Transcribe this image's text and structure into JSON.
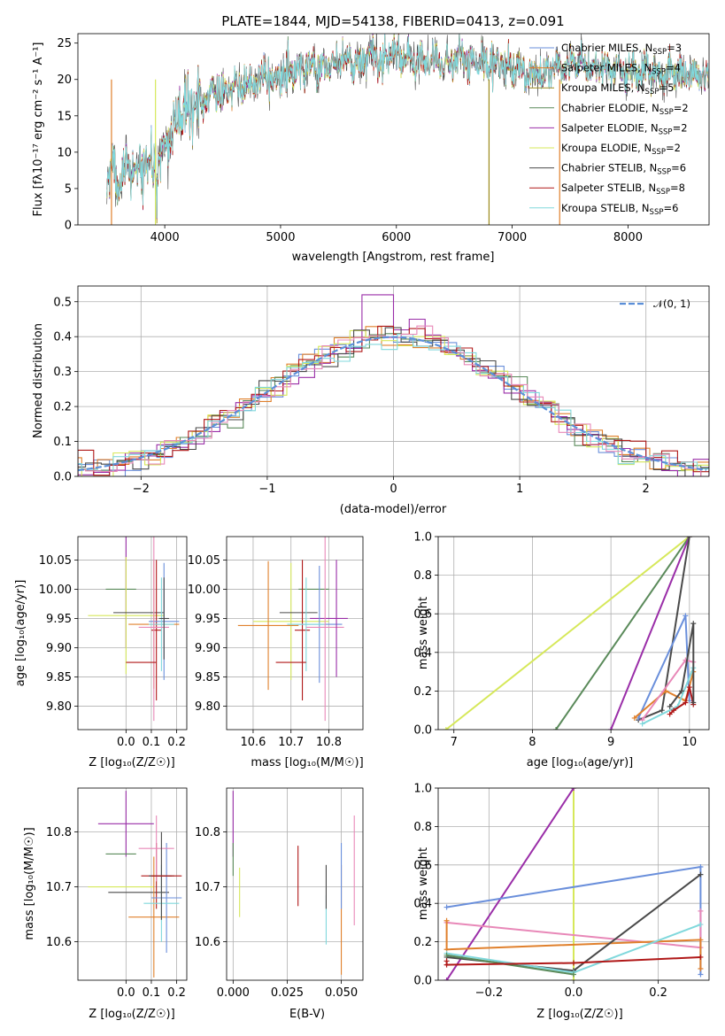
{
  "colors": {
    "chabrier_miles": "#6a8fdb",
    "salpeter_miles": "#e0802c",
    "kroupa_miles": "#9c8a1c",
    "chabrier_elodie": "#5a8a5a",
    "salpeter_elodie": "#9a2ea8",
    "kroupa_elodie": "#d6e85a",
    "chabrier_stelib": "#4a4a4a",
    "salpeter_stelib": "#b01818",
    "kroupa_stelib": "#80d8dc",
    "pink": "#e888b8"
  },
  "chart_data": [
    {
      "type": "line",
      "title": "PLATE=1844, MJD=54138, FIBERID=0413, z=0.091",
      "xlabel": "wavelength [Angstrom, rest frame]",
      "ylabel": "Flux [fλ10⁻¹⁷ erg cm⁻² s⁻¹ A⁻¹]",
      "xlim": [
        3250,
        8700
      ],
      "ylim": [
        0,
        26.3
      ],
      "xticks": [
        4000,
        5000,
        6000,
        7000,
        8000
      ],
      "yticks": [
        0,
        5,
        10,
        15,
        20,
        25
      ],
      "legend": [
        {
          "label": "Chabrier MILES, N",
          "sub": "SSP",
          "suffix": "=3",
          "color": "#6a8fdb"
        },
        {
          "label": "Salpeter MILES, N",
          "sub": "SSP",
          "suffix": "=4",
          "color": "#e0802c"
        },
        {
          "label": "Kroupa MILES, N",
          "sub": "SSP",
          "suffix": "=5",
          "color": "#9c8a1c"
        },
        {
          "label": "Chabrier ELODIE, N",
          "sub": "SSP",
          "suffix": "=2",
          "color": "#5a8a5a"
        },
        {
          "label": "Salpeter ELODIE, N",
          "sub": "SSP",
          "suffix": "=2",
          "color": "#9a2ea8"
        },
        {
          "label": "Kroupa ELODIE, N",
          "sub": "SSP",
          "suffix": "=2",
          "color": "#d6e85a"
        },
        {
          "label": "Chabrier STELIB, N",
          "sub": "SSP",
          "suffix": "=6",
          "color": "#4a4a4a"
        },
        {
          "label": "Salpeter STELIB, N",
          "sub": "SSP",
          "suffix": "=8",
          "color": "#b01818"
        },
        {
          "label": "Kroupa STELIB, N",
          "sub": "SSP",
          "suffix": "=6",
          "color": "#80d8dc"
        }
      ],
      "continuum": {
        "x": [
          3500,
          3700,
          3900,
          4000,
          4100,
          4300,
          4500,
          4800,
          5000,
          5200,
          5400,
          5600,
          5800,
          6000,
          6200,
          6500,
          6800,
          7000,
          7200,
          7500,
          7800,
          8000,
          8300,
          8700
        ],
        "y": [
          7,
          8,
          8.5,
          11,
          14,
          17,
          18.5,
          19.5,
          20.5,
          21.5,
          22,
          22.5,
          23,
          23,
          22.5,
          22.5,
          22,
          22,
          20.5,
          22,
          21.5,
          21,
          21,
          20.5
        ]
      }
    },
    {
      "type": "histogram",
      "xlabel": "(data-model)/error",
      "ylabel": "Normed distribution",
      "xlim": [
        -2.5,
        2.5
      ],
      "ylim": [
        0,
        0.545
      ],
      "xticks": [
        -2,
        -1,
        0,
        1,
        2
      ],
      "yticks": [
        0.0,
        0.1,
        0.2,
        0.3,
        0.4,
        0.5
      ],
      "legend": "𝒩(0, 1)",
      "bin_width": 0.125,
      "peak_bars": [
        0.52,
        0.45,
        0.43
      ]
    },
    {
      "type": "errorbar",
      "xlabel": "Z [log₁₀(Z/Z☉)]",
      "ylabel": "age  [log₁₀(age/yr)]",
      "xlim": [
        -0.19,
        0.24
      ],
      "ylim": [
        9.76,
        10.09
      ],
      "xticks": [
        0.0,
        0.1,
        0.2
      ],
      "yticks": [
        9.8,
        9.85,
        9.9,
        9.95,
        10.0,
        10.05
      ]
    },
    {
      "type": "errorbar",
      "xlabel": "mass [log₁₀(M/M☉)]",
      "ylabel": "",
      "xlim": [
        10.53,
        10.89
      ],
      "ylim": [
        9.76,
        10.09
      ],
      "xticks": [
        10.6,
        10.7,
        10.8
      ],
      "yticks": [
        9.8,
        9.85,
        9.9,
        9.95,
        10.0,
        10.05
      ]
    },
    {
      "type": "line",
      "xlabel": "age  [log₁₀(age/yr)]",
      "ylabel": "mass weight",
      "xlim": [
        6.8,
        10.25
      ],
      "ylim": [
        0,
        1.0
      ],
      "xticks": [
        7,
        8,
        9,
        10
      ],
      "yticks": [
        0.0,
        0.2,
        0.4,
        0.6,
        0.8,
        1.0
      ]
    },
    {
      "type": "errorbar",
      "xlabel": "Z [log₁₀(Z/Z☉)]",
      "ylabel": "mass [log₁₀(M/M☉)]",
      "xlim": [
        -0.19,
        0.24
      ],
      "ylim": [
        10.53,
        10.88
      ],
      "xticks": [
        0.0,
        0.1,
        0.2
      ],
      "yticks": [
        10.6,
        10.7,
        10.8
      ]
    },
    {
      "type": "errorbar",
      "xlabel": "E(B-V)",
      "ylabel": "",
      "xlim": [
        -0.003,
        0.06
      ],
      "ylim": [
        10.53,
        10.88
      ],
      "xticks": [
        0.0,
        0.025,
        0.05
      ],
      "yticks": [
        10.6,
        10.7,
        10.8
      ]
    },
    {
      "type": "line",
      "xlabel": "Z [log₁₀(Z/Z☉)]",
      "ylabel": "mass weight",
      "xlim": [
        -0.32,
        0.32
      ],
      "ylim": [
        0,
        1.0
      ],
      "xticks": [
        -0.2,
        0.0,
        0.2
      ],
      "yticks": [
        0.0,
        0.2,
        0.4,
        0.6,
        0.8,
        1.0
      ]
    }
  ]
}
